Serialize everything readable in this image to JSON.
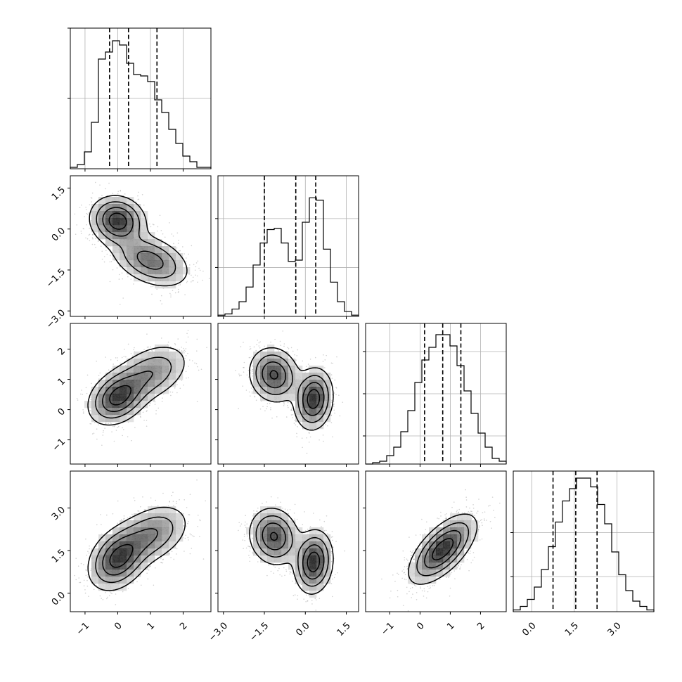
{
  "chart_data": {
    "type": "corner",
    "title": "",
    "parameters": [
      {
        "range": [
          -1.45,
          2.85
        ],
        "ticks": [
          -1,
          0,
          1,
          2
        ],
        "tick_labels": [
          "−1",
          "0",
          "1",
          "2"
        ],
        "quantiles": [
          -0.25,
          0.33,
          1.2
        ],
        "histogram": {
          "bin_edges": [
            -1.45,
            -1.235,
            -1.02,
            -0.805,
            -0.59,
            -0.375,
            -0.16,
            0.055,
            0.27,
            0.485,
            0.7,
            0.915,
            1.13,
            1.345,
            1.56,
            1.775,
            1.99,
            2.205,
            2.42,
            2.635,
            2.85
          ],
          "counts": [
            1,
            3,
            12,
            33,
            78,
            83,
            91,
            88,
            75,
            67,
            66,
            62,
            49,
            40,
            28,
            18,
            9,
            5,
            1,
            1
          ],
          "ymax": 100,
          "y_ticks": [
            50,
            100
          ]
        }
      },
      {
        "range": [
          -3.2,
          1.95
        ],
        "ticks": [
          -3.0,
          -1.5,
          0.0,
          1.5
        ],
        "tick_labels": [
          "−3.0",
          "−1.5",
          "0.0",
          "1.5"
        ],
        "quantiles": [
          -1.5,
          -0.35,
          0.38
        ],
        "histogram": {
          "bin_edges": [
            -3.2,
            -2.9425,
            -2.685,
            -2.4275,
            -2.17,
            -1.9125,
            -1.655,
            -1.3975,
            -1.14,
            -0.8825,
            -0.625,
            -0.3675,
            -0.11,
            0.1475,
            0.405,
            0.6625,
            0.92,
            1.1775,
            1.435,
            1.6925,
            1.95
          ],
          "counts": [
            1,
            2,
            6,
            12,
            24,
            42,
            60,
            71,
            72,
            60,
            45,
            46,
            77,
            97,
            95,
            55,
            28,
            12,
            4,
            1
          ],
          "ymax": 115,
          "y_ticks": [
            40,
            80
          ]
        }
      },
      {
        "range": [
          -1.8,
          2.85
        ],
        "ticks": [
          -1,
          0,
          1,
          2
        ],
        "tick_labels": [
          "−1",
          "0",
          "1",
          "2"
        ],
        "quantiles": [
          0.15,
          0.75,
          1.35
        ],
        "histogram": {
          "bin_edges": [
            -1.8,
            -1.5675,
            -1.335,
            -1.1025,
            -0.87,
            -0.6375,
            -0.405,
            -0.1725,
            0.06,
            0.2925,
            0.525,
            0.7575,
            0.99,
            1.2225,
            1.455,
            1.6875,
            1.92,
            2.1525,
            2.385,
            2.6175,
            2.85
          ],
          "counts": [
            0,
            1,
            2,
            6,
            12,
            23,
            38,
            58,
            74,
            83,
            92,
            92,
            84,
            70,
            52,
            36,
            22,
            12,
            4,
            2
          ],
          "ymax": 100,
          "y_ticks": [
            20,
            50,
            80
          ]
        }
      },
      {
        "range": [
          -0.65,
          4.3
        ],
        "ticks": [
          0.0,
          1.5,
          3.0
        ],
        "tick_labels": [
          "0.0",
          "1.5",
          "3.0"
        ],
        "quantiles": [
          0.75,
          1.55,
          2.3
        ],
        "histogram": {
          "bin_edges": [
            -0.65,
            -0.4025,
            -0.155,
            0.0925,
            0.34,
            0.5875,
            0.835,
            1.0825,
            1.33,
            1.5775,
            1.825,
            2.0725,
            2.32,
            2.5675,
            2.815,
            3.0625,
            3.31,
            3.5575,
            3.805,
            4.0525,
            4.3
          ],
          "counts": [
            1,
            3,
            7,
            14,
            24,
            37,
            51,
            63,
            70,
            76,
            76,
            71,
            61,
            50,
            34,
            21,
            12,
            6,
            3,
            1
          ],
          "ymax": 80,
          "y_ticks": [
            20,
            45
          ]
        }
      }
    ],
    "scatter": [
      {
        "row": 1,
        "col": 0,
        "clusters": [
          {
            "mean": [
              0.0,
              0.3
            ],
            "sd": [
              0.42,
              0.45
            ],
            "rho": -0.1,
            "weight": 0.5
          },
          {
            "mean": [
              1.0,
              -1.15
            ],
            "sd": [
              0.6,
              0.5
            ],
            "rho": -0.4,
            "weight": 0.5
          }
        ]
      },
      {
        "row": 2,
        "col": 0,
        "clusters": [
          {
            "mean": [
              0.0,
              0.4
            ],
            "sd": [
              0.45,
              0.45
            ],
            "rho": 0.3,
            "weight": 0.55
          },
          {
            "mean": [
              1.0,
              1.2
            ],
            "sd": [
              0.6,
              0.5
            ],
            "rho": 0.4,
            "weight": 0.45
          }
        ]
      },
      {
        "row": 2,
        "col": 1,
        "clusters": [
          {
            "mean": [
              -1.15,
              1.15
            ],
            "sd": [
              0.45,
              0.45
            ],
            "rho": -0.1,
            "weight": 0.5
          },
          {
            "mean": [
              0.3,
              0.35
            ],
            "sd": [
              0.35,
              0.5
            ],
            "rho": 0.1,
            "weight": 0.5
          }
        ]
      },
      {
        "row": 3,
        "col": 0,
        "clusters": [
          {
            "mean": [
              0.0,
              1.2
            ],
            "sd": [
              0.45,
              0.55
            ],
            "rho": 0.3,
            "weight": 0.55
          },
          {
            "mean": [
              1.0,
              2.05
            ],
            "sd": [
              0.6,
              0.55
            ],
            "rho": 0.4,
            "weight": 0.45
          }
        ]
      },
      {
        "row": 3,
        "col": 1,
        "clusters": [
          {
            "mean": [
              -1.15,
              2.0
            ],
            "sd": [
              0.45,
              0.5
            ],
            "rho": -0.1,
            "weight": 0.5
          },
          {
            "mean": [
              0.3,
              1.1
            ],
            "sd": [
              0.35,
              0.55
            ],
            "rho": 0.1,
            "weight": 0.5
          }
        ]
      },
      {
        "row": 3,
        "col": 2,
        "clusters": [
          {
            "mean": [
              0.75,
              1.55
            ],
            "sd": [
              0.55,
              0.6
            ],
            "rho": 0.65,
            "weight": 1.0
          }
        ]
      }
    ],
    "legend": "none",
    "grid": true
  }
}
